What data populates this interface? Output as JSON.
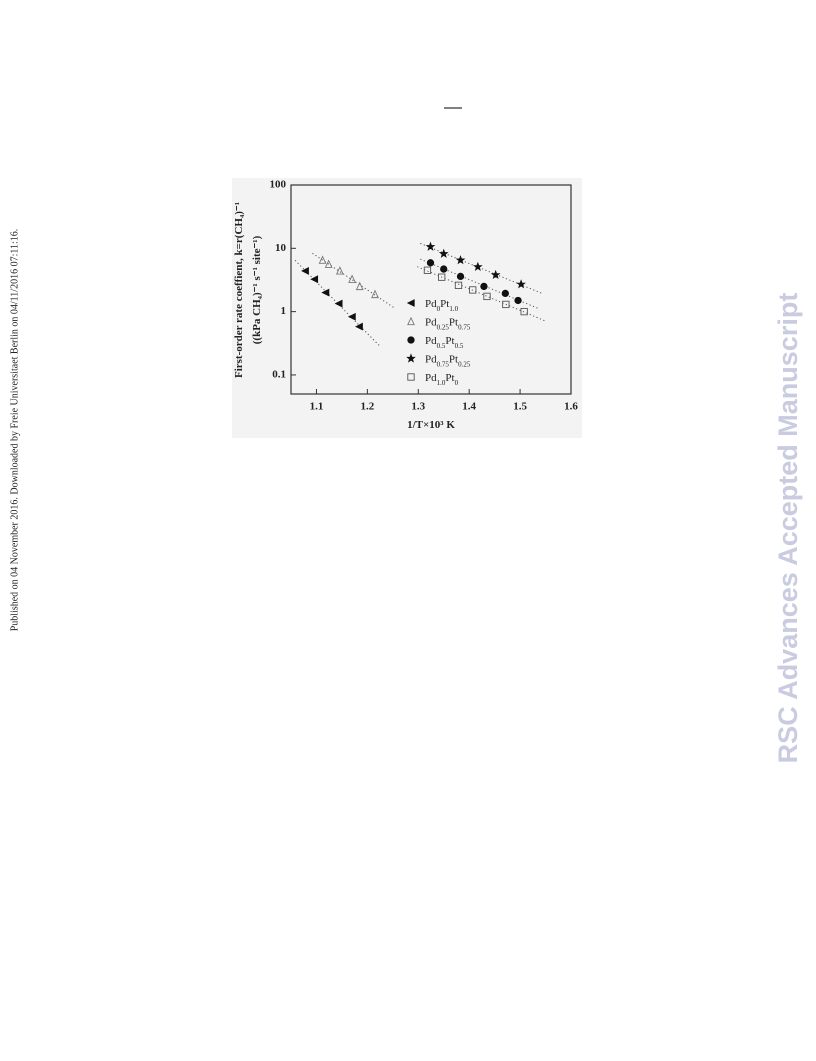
{
  "side_note": "Published on 04 November 2016. Downloaded by Freie Universitaet Berlin on 04/11/2016 07:11:16.",
  "watermark": "RSC Advances Accepted Manuscript",
  "chart_data": {
    "type": "scatter",
    "x_label": "1/T×10³ K",
    "y_label": [
      "First-order rate coeffient, k=r(CH₄)⁻¹",
      "((kPa CH₄)⁻¹ s⁻¹ site⁻¹)"
    ],
    "xlim": [
      1.05,
      1.6
    ],
    "xticks": [
      1.1,
      1.2,
      1.3,
      1.4,
      1.5,
      1.6
    ],
    "ylim": [
      0.05,
      100
    ],
    "yticks": [
      0.1,
      1,
      10,
      100
    ],
    "y_scale": "log",
    "trend_lines": true,
    "series": [
      {
        "name": "Pd0Pt1.0",
        "marker": "triangle-left",
        "filled": true,
        "color": "#111111",
        "x": [
          1.078,
          1.096,
          1.118,
          1.144,
          1.17,
          1.184
        ],
        "values": [
          4.4,
          3.25,
          2.0,
          1.34,
          0.83,
          0.58
        ]
      },
      {
        "name": "Pd0.25Pt0.75",
        "marker": "triangle-up",
        "filled": false,
        "color": "#777777",
        "x": [
          1.112,
          1.124,
          1.146,
          1.17,
          1.185,
          1.215
        ],
        "values": [
          6.5,
          5.6,
          4.4,
          3.25,
          2.5,
          1.87
        ]
      },
      {
        "name": "Pd0.5Pt0.5",
        "marker": "circle",
        "filled": true,
        "color": "#111111",
        "x": [
          1.324,
          1.35,
          1.383,
          1.429,
          1.471,
          1.496
        ],
        "values": [
          5.9,
          4.7,
          3.6,
          2.5,
          1.94,
          1.5
        ]
      },
      {
        "name": "Pd0.75Pt0.25",
        "marker": "star",
        "filled": true,
        "color": "#111111",
        "x": [
          1.324,
          1.35,
          1.383,
          1.417,
          1.452,
          1.502
        ],
        "values": [
          10.6,
          8.2,
          6.5,
          5.1,
          3.8,
          2.7
        ]
      },
      {
        "name": "Pd1.0Pt0",
        "marker": "square",
        "filled": false,
        "color": "#555555",
        "x": [
          1.318,
          1.346,
          1.379,
          1.407,
          1.435,
          1.472,
          1.508
        ],
        "values": [
          4.5,
          3.5,
          2.6,
          2.2,
          1.74,
          1.3,
          1.0
        ]
      }
    ]
  }
}
